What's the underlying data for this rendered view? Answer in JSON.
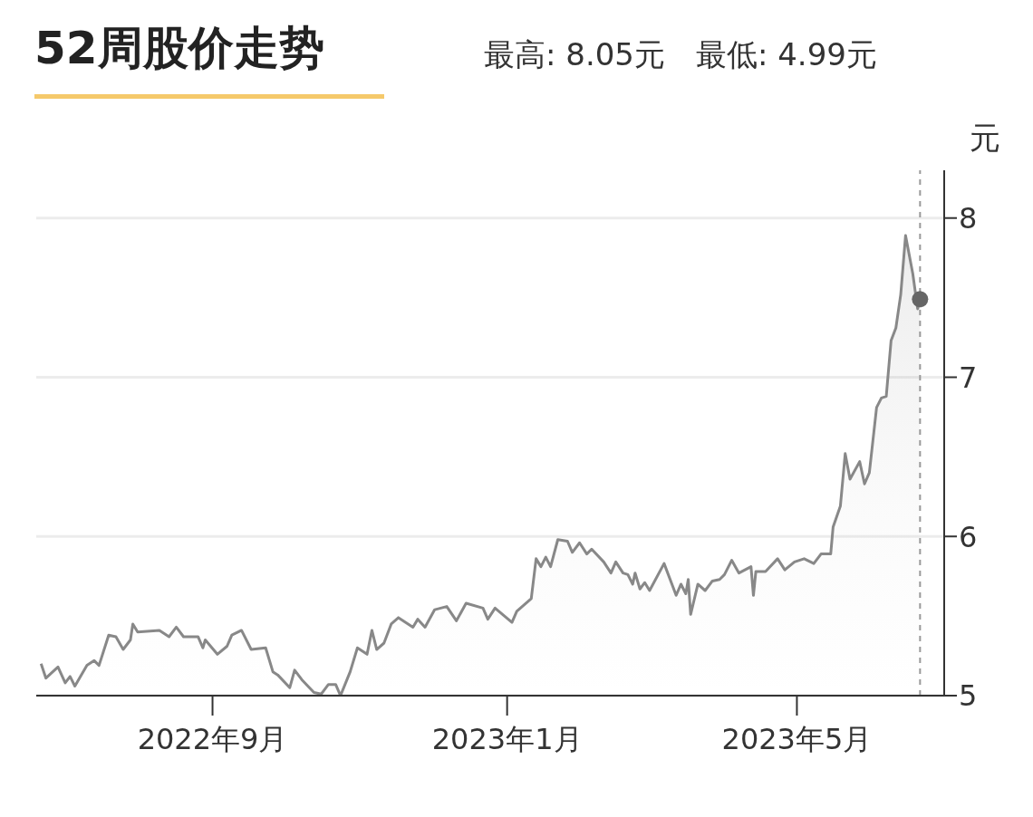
{
  "chart_data": {
    "type": "area",
    "title": "52周股价走势",
    "subtitle": "最高: 8.05元　最低: 4.99元",
    "ylabel": "元",
    "xlim": [
      "2022-06-20",
      "2023-07-01"
    ],
    "xticks": [
      {
        "value": "2022-09-01",
        "label": "2022年9月"
      },
      {
        "value": "2023-01-01",
        "label": "2023年1月"
      },
      {
        "value": "2023-05-01",
        "label": "2023年5月"
      }
    ],
    "ylim": [
      5,
      8.3
    ],
    "yticks": [
      5,
      6,
      7,
      8
    ],
    "grid": "y",
    "ref_lines": [
      {
        "axis": "x",
        "value": "2023-06-21",
        "line_style": "dashed",
        "color": "#999999"
      }
    ],
    "series": [
      {
        "type": "area",
        "color": "#888888",
        "x": [
          "2022-06-22",
          "2022-06-24",
          "2022-06-29",
          "2022-07-02",
          "2022-07-04",
          "2022-07-06",
          "2022-07-11",
          "2022-07-14",
          "2022-07-16",
          "2022-07-20",
          "2022-07-23",
          "2022-07-26",
          "2022-07-29",
          "2022-07-30",
          "2022-08-01",
          "2022-08-10",
          "2022-08-14",
          "2022-08-17",
          "2022-08-20",
          "2022-08-26",
          "2022-08-28",
          "2022-08-29",
          "2022-09-03",
          "2022-09-07",
          "2022-09-09",
          "2022-09-13",
          "2022-09-17",
          "2022-09-23",
          "2022-09-26",
          "2022-09-28",
          "2022-10-03",
          "2022-10-05",
          "2022-10-08",
          "2022-10-13",
          "2022-10-16",
          "2022-10-19",
          "2022-10-22",
          "2022-10-24",
          "2022-10-28",
          "2022-10-31",
          "2022-11-04",
          "2022-11-06",
          "2022-11-08",
          "2022-11-11",
          "2022-11-14",
          "2022-11-17",
          "2022-11-23",
          "2022-11-25",
          "2022-11-28",
          "2022-12-02",
          "2022-12-07",
          "2022-12-11",
          "2022-12-15",
          "2022-12-22",
          "2022-12-24",
          "2022-12-27",
          "2023-01-03",
          "2023-01-05",
          "2023-01-11",
          "2023-01-13",
          "2023-01-15",
          "2023-01-17",
          "2023-01-19",
          "2023-01-22",
          "2023-01-26",
          "2023-01-28",
          "2023-01-31",
          "2023-02-03",
          "2023-02-05",
          "2023-02-10",
          "2023-02-13",
          "2023-02-15",
          "2023-02-18",
          "2023-02-20",
          "2023-02-22",
          "2023-02-23",
          "2023-02-25",
          "2023-02-27",
          "2023-03-01",
          "2023-03-07",
          "2023-03-12",
          "2023-03-14",
          "2023-03-16",
          "2023-03-17",
          "2023-03-18",
          "2023-03-21",
          "2023-03-24",
          "2023-03-27",
          "2023-03-30",
          "2023-04-01",
          "2023-04-04",
          "2023-04-07",
          "2023-04-12",
          "2023-04-13",
          "2023-04-14",
          "2023-04-18",
          "2023-04-23",
          "2023-04-26",
          "2023-04-30",
          "2023-05-04",
          "2023-05-08",
          "2023-05-11",
          "2023-05-15",
          "2023-05-16",
          "2023-05-19",
          "2023-05-21",
          "2023-05-23",
          "2023-05-27",
          "2023-05-29",
          "2023-05-31",
          "2023-06-03",
          "2023-06-05",
          "2023-06-07",
          "2023-06-09",
          "2023-06-11",
          "2023-06-13",
          "2023-06-15",
          "2023-06-18",
          "2023-06-20",
          "2023-06-21"
        ],
        "values": [
          5.2,
          5.11,
          5.18,
          5.08,
          5.12,
          5.06,
          5.19,
          5.22,
          5.19,
          5.38,
          5.37,
          5.29,
          5.35,
          5.45,
          5.4,
          5.41,
          5.37,
          5.43,
          5.37,
          5.37,
          5.3,
          5.35,
          5.26,
          5.31,
          5.38,
          5.41,
          5.29,
          5.3,
          5.15,
          5.13,
          5.05,
          5.16,
          5.1,
          5.02,
          5.01,
          5.07,
          5.07,
          5.0,
          5.15,
          5.3,
          5.26,
          5.41,
          5.29,
          5.33,
          5.45,
          5.49,
          5.43,
          5.48,
          5.43,
          5.54,
          5.56,
          5.47,
          5.58,
          5.55,
          5.48,
          5.55,
          5.46,
          5.53,
          5.61,
          5.86,
          5.81,
          5.87,
          5.81,
          5.98,
          5.97,
          5.9,
          5.96,
          5.89,
          5.92,
          5.84,
          5.77,
          5.84,
          5.77,
          5.76,
          5.7,
          5.77,
          5.67,
          5.71,
          5.66,
          5.83,
          5.63,
          5.7,
          5.64,
          5.73,
          5.51,
          5.7,
          5.66,
          5.72,
          5.73,
          5.76,
          5.85,
          5.77,
          5.81,
          5.63,
          5.78,
          5.78,
          5.86,
          5.79,
          5.84,
          5.86,
          5.83,
          5.89,
          5.89,
          6.06,
          6.19,
          6.52,
          6.36,
          6.47,
          6.33,
          6.4,
          6.81,
          6.87,
          6.88,
          7.23,
          7.31,
          7.52,
          7.89,
          7.65,
          7.43,
          7.48
        ]
      },
      {
        "type": "scatter",
        "color": "#666666",
        "x": [
          "2023-06-21"
        ],
        "values": [
          7.49
        ]
      }
    ]
  }
}
